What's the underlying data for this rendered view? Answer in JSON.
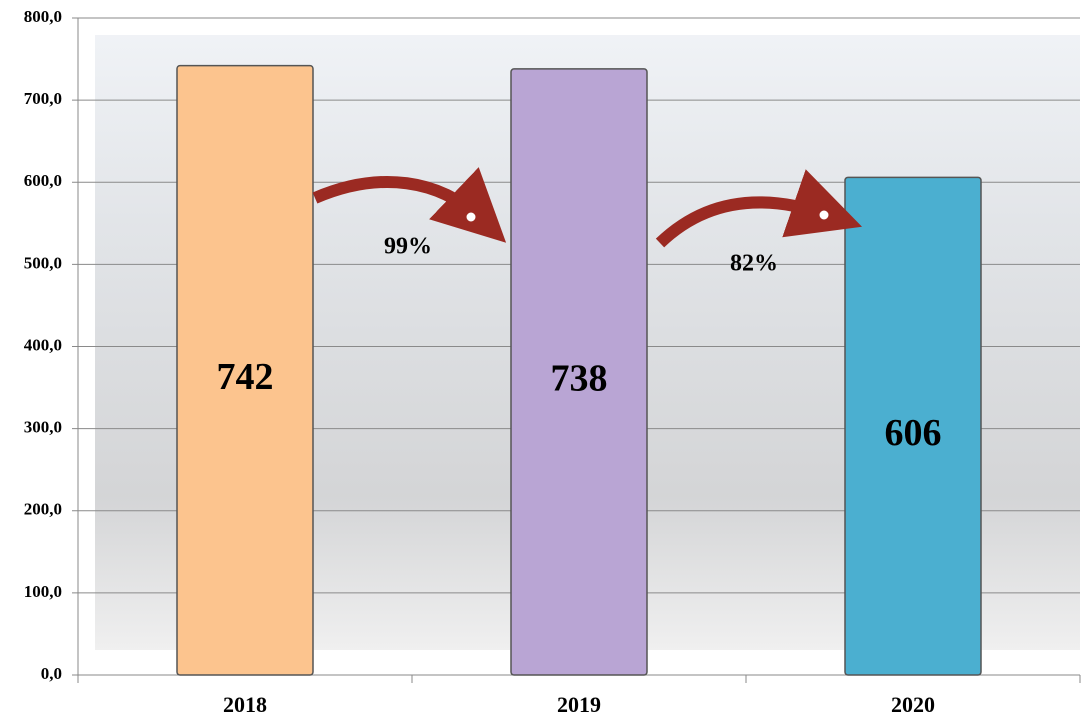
{
  "chart_data": {
    "type": "bar",
    "categories": [
      "2018",
      "2019",
      "2020"
    ],
    "values": [
      742,
      738,
      606
    ],
    "colors": [
      "#fcc48e",
      "#b9a5d4",
      "#4bafd0"
    ],
    "ylim": [
      0,
      800
    ],
    "yticks": [
      {
        "value": 0,
        "label": "0,0"
      },
      {
        "value": 100,
        "label": "100,0"
      },
      {
        "value": 200,
        "label": "200,0"
      },
      {
        "value": 300,
        "label": "300,0"
      },
      {
        "value": 400,
        "label": "400,0"
      },
      {
        "value": 500,
        "label": "500,0"
      },
      {
        "value": 600,
        "label": "600,0"
      },
      {
        "value": 700,
        "label": "700,0"
      },
      {
        "value": 800,
        "label": "800,0"
      }
    ],
    "grid": true,
    "annotations": [
      {
        "text": "99%"
      },
      {
        "text": "82%"
      }
    ]
  }
}
